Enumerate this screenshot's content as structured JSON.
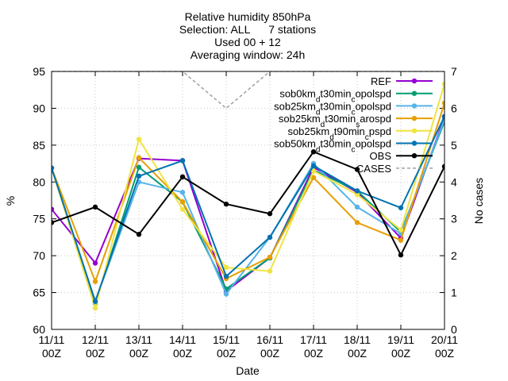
{
  "chart_data": {
    "type": "line",
    "title_lines": [
      "Relative humidity 850hPa",
      "Selection: ALL      7 stations",
      "Used 00 + 12",
      "Averaging window: 24h"
    ],
    "xlabel": "Date",
    "ylabel": "%",
    "y2label": "No cases",
    "ylim": [
      60,
      95
    ],
    "y2lim": [
      0,
      7
    ],
    "yticks": [
      60,
      65,
      70,
      75,
      80,
      85,
      90,
      95
    ],
    "y2ticks": [
      0,
      1,
      2,
      3,
      4,
      5,
      6,
      7
    ],
    "grid": true,
    "legend_position": "top-right",
    "categories": [
      [
        "11/11",
        "00Z"
      ],
      [
        "12/11",
        "00Z"
      ],
      [
        "13/11",
        "00Z"
      ],
      [
        "14/11",
        "00Z"
      ],
      [
        "15/11",
        "00Z"
      ],
      [
        "16/11",
        "00Z"
      ],
      [
        "17/11",
        "00Z"
      ],
      [
        "18/11",
        "00Z"
      ],
      [
        "19/11",
        "00Z"
      ],
      [
        "20/11",
        "00Z"
      ]
    ],
    "series": [
      {
        "name": "REF",
        "legend": [
          {
            "t": "REF"
          }
        ],
        "color": "#9400d3",
        "axis": "y",
        "values": [
          76.3,
          69.0,
          83.2,
          82.9,
          65.2,
          69.7,
          82.0,
          78.6,
          72.4,
          88.8
        ]
      },
      {
        "name": "sob0km_dt30min_copolspd",
        "legend": [
          {
            "t": "sob0km"
          },
          {
            "t": "d",
            "sub": true
          },
          {
            "t": "t30min"
          },
          {
            "t": "c",
            "sub": true
          },
          {
            "t": "opolspd"
          }
        ],
        "color": "#009e73",
        "axis": "y",
        "values": [
          81.9,
          63.5,
          82.0,
          77.3,
          65.5,
          69.7,
          81.6,
          78.8,
          73.2,
          88.2
        ]
      },
      {
        "name": "sob25km_dt30min_copolspd",
        "legend": [
          {
            "t": "sob25km"
          },
          {
            "t": "d",
            "sub": true
          },
          {
            "t": "t30min"
          },
          {
            "t": "c",
            "sub": true
          },
          {
            "t": "opolspd"
          }
        ],
        "color": "#56b4e9",
        "axis": "y",
        "values": [
          81.9,
          63.8,
          80.0,
          78.6,
          64.8,
          72.5,
          82.5,
          76.6,
          73.0,
          88.5
        ]
      },
      {
        "name": "sob25km_dt30min_sarospd",
        "legend": [
          {
            "t": "sob25km"
          },
          {
            "t": "d",
            "sub": true
          },
          {
            "t": "t30min"
          },
          {
            "t": "s",
            "sub": true
          },
          {
            "t": "arospd"
          }
        ],
        "color": "#e69f00",
        "axis": "y",
        "values": [
          81.9,
          66.5,
          83.3,
          77.3,
          66.9,
          69.8,
          80.6,
          74.5,
          72.1,
          90.7
        ]
      },
      {
        "name": "sob25km_dt90min_cpspd",
        "legend": [
          {
            "t": "sob25km"
          },
          {
            "t": "d",
            "sub": true
          },
          {
            "t": "t90min"
          },
          {
            "t": "c",
            "sub": true
          },
          {
            "t": "pspd"
          }
        ],
        "color": "#f0e442",
        "axis": "y",
        "values": [
          81.9,
          62.9,
          85.8,
          76.3,
          68.4,
          67.9,
          81.5,
          78.3,
          73.5,
          93.3
        ]
      },
      {
        "name": "sob50km_dt30min_copolspd",
        "legend": [
          {
            "t": "sob50km"
          },
          {
            "t": "d",
            "sub": true
          },
          {
            "t": "t30min"
          },
          {
            "t": "c",
            "sub": true
          },
          {
            "t": "opolspd"
          }
        ],
        "color": "#0072b2",
        "axis": "y",
        "values": [
          81.9,
          63.8,
          80.8,
          82.9,
          67.2,
          72.5,
          82.2,
          78.8,
          76.5,
          88.9
        ]
      },
      {
        "name": "OBS",
        "legend": [
          {
            "t": "OBS"
          }
        ],
        "color": "#000000",
        "axis": "y",
        "values": [
          74.5,
          76.6,
          72.9,
          80.7,
          77.0,
          75.7,
          84.1,
          81.7,
          70.1,
          82.1
        ]
      },
      {
        "name": "CASES",
        "legend": [
          {
            "t": "CASES"
          }
        ],
        "color": "#a0a0a0",
        "axis": "y2",
        "style": "dashed",
        "values": [
          7,
          7,
          7,
          7,
          6,
          7,
          7,
          7,
          7,
          7
        ]
      }
    ]
  }
}
